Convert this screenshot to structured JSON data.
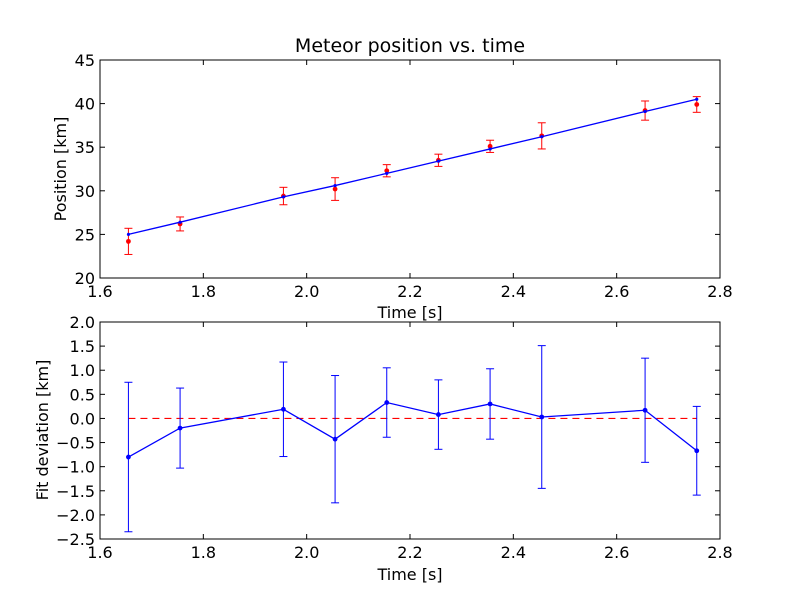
{
  "chart_data": [
    {
      "type": "scatter",
      "title": "Meteor position vs. time",
      "xlabel": "Time [s]",
      "ylabel": "Position [km]",
      "xlim": [
        1.6,
        2.8
      ],
      "ylim": [
        20,
        45
      ],
      "xticks": [
        "1.6",
        "1.8",
        "2.0",
        "2.2",
        "2.4",
        "2.6",
        "2.8"
      ],
      "yticks": [
        "20",
        "25",
        "30",
        "35",
        "40",
        "45"
      ],
      "grid": false,
      "series": [
        {
          "kind": "errorbar-points",
          "color": "#ff0000",
          "x": [
            1.655,
            1.755,
            1.955,
            2.055,
            2.155,
            2.255,
            2.355,
            2.455,
            2.655,
            2.755
          ],
          "y": [
            24.2,
            26.2,
            29.4,
            30.2,
            32.3,
            33.5,
            35.1,
            36.3,
            39.2,
            39.9
          ],
          "err": [
            1.5,
            0.8,
            1.0,
            1.3,
            0.7,
            0.7,
            0.7,
            1.5,
            1.1,
            0.9
          ]
        },
        {
          "kind": "line",
          "color": "#0000ff",
          "x": [
            1.655,
            1.755,
            1.955,
            2.055,
            2.155,
            2.255,
            2.355,
            2.455,
            2.655,
            2.755
          ],
          "y": [
            25.0,
            26.4,
            29.3,
            30.6,
            32.0,
            33.4,
            34.8,
            36.2,
            39.1,
            40.5
          ]
        }
      ]
    },
    {
      "type": "line",
      "title": "",
      "xlabel": "Time [s]",
      "ylabel": "Fit deviation [km]",
      "xlim": [
        1.6,
        2.8
      ],
      "ylim": [
        -2.5,
        2.0
      ],
      "xticks": [
        "1.6",
        "1.8",
        "2.0",
        "2.2",
        "2.4",
        "2.6",
        "2.8"
      ],
      "yticks": [
        "−2.5",
        "−2.0",
        "−1.5",
        "−1.0",
        "−0.5",
        "0.0",
        "0.5",
        "1.0",
        "1.5",
        "2.0"
      ],
      "grid": false,
      "zero_line": {
        "y": 0,
        "color": "#ff0000",
        "style": "dashed"
      },
      "series": [
        {
          "kind": "errorbar-line",
          "color": "#0000ff",
          "x": [
            1.655,
            1.755,
            1.955,
            2.055,
            2.155,
            2.255,
            2.355,
            2.455,
            2.655,
            2.755
          ],
          "y": [
            -0.8,
            -0.2,
            0.19,
            -0.43,
            0.33,
            0.08,
            0.3,
            0.03,
            0.17,
            -0.67
          ],
          "err": [
            1.55,
            0.83,
            0.98,
            1.32,
            0.72,
            0.72,
            0.73,
            1.48,
            1.08,
            0.92
          ]
        }
      ]
    }
  ]
}
